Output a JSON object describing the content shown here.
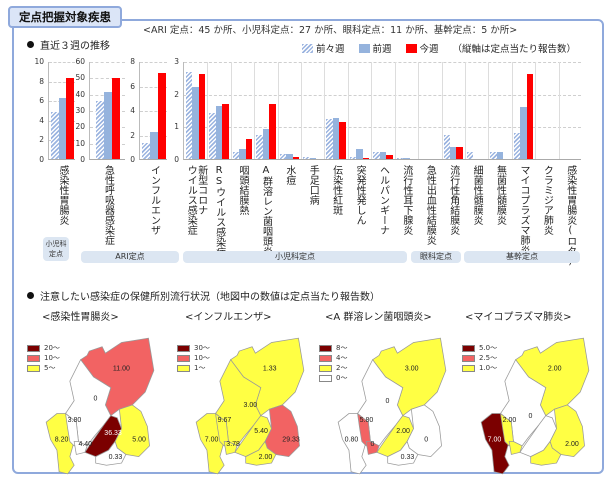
{
  "header": {
    "title": "定点把握対象疾患",
    "subtitle": "<ARI 定点：45 か所、小児科定点：27 か所、眼科定点：11 か所、基幹定点：5 か所>"
  },
  "section1": {
    "heading": "直近３週の推移",
    "legend": {
      "prev2": "前々週",
      "prev1": "前週",
      "current": "今週",
      "note": "（縦軸は定点当たり報告数）"
    },
    "groups": [
      {
        "label": "小児科\n定点",
        "label_line1": "小児科",
        "label_line2": "定点"
      },
      {
        "label": "ARI定点"
      },
      {
        "label": "小児科定点"
      },
      {
        "label": "眼科定点"
      },
      {
        "label": "基幹定点"
      }
    ]
  },
  "section2": {
    "heading": "注意したい感染症の保健所別流行状況（地図中の数値は定点当たり報告数）",
    "maps": [
      {
        "title": "<感染性胃腸炎>",
        "legend": [
          {
            "label": "20～",
            "color": "#7b0000"
          },
          {
            "label": "10～",
            "color": "#f26363"
          },
          {
            "label": "5～",
            "color": "#ffff44"
          }
        ],
        "values": [
          "11.00",
          "0",
          "3.80",
          "8.20",
          "4.40",
          "36.33",
          "5.00",
          "0.33"
        ]
      },
      {
        "title": "<インフルエンザ>",
        "legend": [
          {
            "label": "30～",
            "color": "#7b0000"
          },
          {
            "label": "10～",
            "color": "#f26363"
          },
          {
            "label": "1～",
            "color": "#ffff44"
          }
        ],
        "values": [
          "1.33",
          "9.67",
          "3.00",
          "7.00",
          "3.78",
          "5.40",
          "29.33",
          "2.00"
        ]
      },
      {
        "title": "<A 群溶レン菌咽頭炎>",
        "legend": [
          {
            "label": "8～",
            "color": "#7b0000"
          },
          {
            "label": "4～",
            "color": "#f26363"
          },
          {
            "label": "2～",
            "color": "#ffff44"
          },
          {
            "label": "0～",
            "color": "#ffffff"
          }
        ],
        "values": [
          "3.00",
          "0",
          "5.80",
          "0.80",
          "0",
          "2.00",
          "0",
          "0.33"
        ]
      },
      {
        "title": "<マイコプラズマ肺炎>",
        "legend": [
          {
            "label": "5.0～",
            "color": "#7b0000"
          },
          {
            "label": "2.5～",
            "color": "#f26363"
          },
          {
            "label": "1.0～",
            "color": "#ffff44"
          }
        ],
        "values": [
          "2.00",
          "2.00",
          "0",
          "7.00",
          "2.00"
        ]
      }
    ]
  },
  "colors": {
    "border": "#8fa9dc",
    "prev2": "#9bb4e0",
    "prev1": "#95b3dd",
    "current": "#ff0000",
    "pill": "#dce6f2",
    "map_dark": "#7b0000",
    "map_mid": "#f26363",
    "map_low": "#ffff44"
  },
  "chart_data": [
    {
      "type": "bar",
      "title": "感染性胃腸炎",
      "categories": [
        "感染性胃腸炎"
      ],
      "series": [
        {
          "name": "前々週",
          "values": [
            4.8
          ]
        },
        {
          "name": "前週",
          "values": [
            6.2
          ]
        },
        {
          "name": "今週",
          "values": [
            8.3
          ]
        }
      ],
      "ylim": [
        0,
        10
      ],
      "yticks": [
        0,
        2,
        4,
        6,
        8,
        10
      ],
      "grid": true,
      "group": "小児科定点"
    },
    {
      "type": "bar",
      "title": "急性呼吸器感染症",
      "categories": [
        "急性呼吸器感染症"
      ],
      "series": [
        {
          "name": "前々週",
          "values": [
            35.5
          ]
        },
        {
          "name": "前週",
          "values": [
            41.0
          ]
        },
        {
          "name": "今週",
          "values": [
            49.8
          ]
        }
      ],
      "ylim": [
        0,
        60
      ],
      "yticks": [
        0,
        10,
        20,
        30,
        40,
        50,
        60
      ],
      "grid": true,
      "group": "ARI定点"
    },
    {
      "type": "bar",
      "title": "インフルエンザ",
      "categories": [
        "インフルエンザ"
      ],
      "series": [
        {
          "name": "前々週",
          "values": [
            1.3
          ]
        },
        {
          "name": "前週",
          "values": [
            2.2
          ]
        },
        {
          "name": "今週",
          "values": [
            7.0
          ]
        }
      ],
      "ylim": [
        0,
        8
      ],
      "yticks": [
        0,
        2,
        4,
        6,
        8
      ],
      "grid": true,
      "group": "ARI定点"
    },
    {
      "type": "bar",
      "title": "その他定点把握疾患",
      "categories": [
        "新型コロナウイルス感染症",
        "RSウイルス感染症",
        "咽頭結膜熱",
        "A群溶レン菌咽頭炎",
        "水痘",
        "手足口病",
        "伝染性紅斑",
        "突発性発しん",
        "ヘルパンギーナ",
        "流行性耳下腺炎",
        "急性出血性結膜炎",
        "流行性角結膜炎",
        "細菌性髄膜炎",
        "無菌性髄膜炎",
        "マイコプラズマ肺炎",
        "クラミジア肺炎",
        "感染性胃腸炎(ロタ)"
      ],
      "series": [
        {
          "name": "前々週",
          "values": [
            2.67,
            1.4,
            0.22,
            0.73,
            0.15,
            0.07,
            1.22,
            0.07,
            0.22,
            0.04,
            0,
            0.73,
            0.2,
            0.2,
            0.8,
            0,
            0
          ]
        },
        {
          "name": "前週",
          "values": [
            2.2,
            1.62,
            0.3,
            0.93,
            0.15,
            0.04,
            1.25,
            0.3,
            0.22,
            0.04,
            0,
            0.36,
            0,
            0.2,
            1.6,
            0,
            0
          ]
        },
        {
          "name": "今週",
          "values": [
            2.6,
            1.68,
            0.62,
            1.68,
            0.07,
            0,
            1.13,
            0.04,
            0.11,
            0,
            0,
            0.36,
            0,
            0,
            2.6,
            0,
            0
          ]
        }
      ],
      "ylim": [
        0,
        3
      ],
      "yticks": [
        0,
        1,
        2,
        3
      ],
      "grid": true,
      "xlabel": "",
      "ylabel": "定点当たり報告数",
      "groups": [
        {
          "label": "小児科定点",
          "from": 0,
          "to": 9
        },
        {
          "label": "眼科定点",
          "from": 10,
          "to": 11
        },
        {
          "label": "基幹定点",
          "from": 12,
          "to": 16
        }
      ]
    }
  ]
}
